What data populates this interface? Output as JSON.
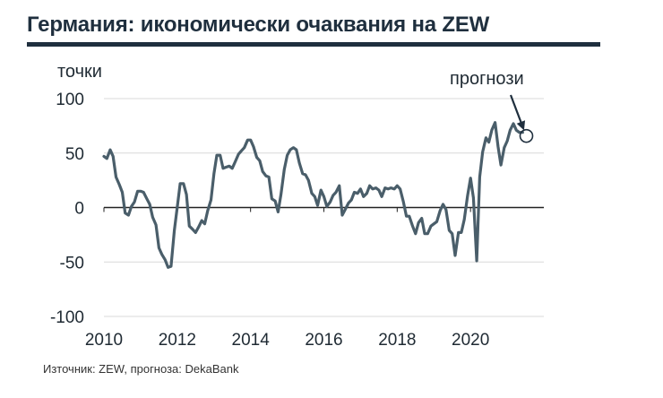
{
  "title": "Германия: икономически очаквания на ZEW",
  "source": "Източник: ZEW, прогноза: DekaBank",
  "colors": {
    "line": "#4a5e6a",
    "title": "#1f2f3e",
    "grid": "#d9d9d9"
  },
  "chart_data": {
    "type": "line",
    "ylabel": "точки",
    "ylim": [
      -100,
      100
    ],
    "yticks": [
      100,
      50,
      0,
      -50,
      -100
    ],
    "xlim": [
      2010,
      2022
    ],
    "xticks": [
      "2010",
      "2012",
      "2014",
      "2016",
      "2018",
      "2020"
    ],
    "grid": true,
    "annotation": {
      "text": "прогнози",
      "target": [
        2021.45,
        69
      ]
    },
    "series": [
      {
        "x": [
          2010.0,
          2010.08,
          2010.17,
          2010.25,
          2010.33,
          2010.42,
          2010.5,
          2010.58,
          2010.67,
          2010.75,
          2010.83,
          2010.92,
          2011.0,
          2011.08,
          2011.17,
          2011.25,
          2011.33,
          2011.42,
          2011.5,
          2011.58,
          2011.67,
          2011.75,
          2011.83,
          2011.92,
          2012.0,
          2012.08,
          2012.17,
          2012.25,
          2012.33,
          2012.42,
          2012.5,
          2012.58,
          2012.67,
          2012.75,
          2012.83,
          2012.92,
          2013.0,
          2013.08,
          2013.17,
          2013.25,
          2013.33,
          2013.42,
          2013.5,
          2013.58,
          2013.67,
          2013.75,
          2013.83,
          2013.92,
          2014.0,
          2014.08,
          2014.17,
          2014.25,
          2014.33,
          2014.42,
          2014.5,
          2014.58,
          2014.67,
          2014.75,
          2014.83,
          2014.92,
          2015.0,
          2015.08,
          2015.17,
          2015.25,
          2015.33,
          2015.42,
          2015.5,
          2015.58,
          2015.67,
          2015.75,
          2015.83,
          2015.92,
          2016.0,
          2016.08,
          2016.17,
          2016.25,
          2016.33,
          2016.42,
          2016.5,
          2016.58,
          2016.67,
          2016.75,
          2016.83,
          2016.92,
          2017.0,
          2017.08,
          2017.17,
          2017.25,
          2017.33,
          2017.42,
          2017.5,
          2017.58,
          2017.67,
          2017.75,
          2017.83,
          2017.92,
          2018.0,
          2018.08,
          2018.17,
          2018.25,
          2018.33,
          2018.42,
          2018.5,
          2018.58,
          2018.67,
          2018.75,
          2018.83,
          2018.92,
          2019.0,
          2019.08,
          2019.17,
          2019.25,
          2019.33,
          2019.42,
          2019.5,
          2019.58,
          2019.67,
          2019.75,
          2019.83,
          2019.92,
          2020.0,
          2020.08,
          2020.17,
          2020.25,
          2020.33,
          2020.42,
          2020.5,
          2020.58,
          2020.67,
          2020.75,
          2020.83,
          2020.92,
          2021.0,
          2021.08,
          2021.17,
          2021.25,
          2021.33,
          2021.42
        ],
        "values": [
          47,
          45,
          53,
          47,
          28,
          21,
          14,
          -5,
          -7,
          1,
          5,
          15,
          15,
          14,
          8,
          3,
          -9,
          -16,
          -37,
          -43,
          -48,
          -55,
          -54,
          -21,
          0,
          22,
          22,
          12,
          -17,
          -20,
          -23,
          -18,
          -12,
          -15,
          -3,
          7,
          31,
          48,
          48,
          36,
          37,
          38,
          36,
          42,
          49,
          52,
          55,
          62,
          62,
          56,
          46,
          43,
          33,
          29,
          28,
          8,
          6,
          -4,
          12,
          35,
          48,
          53,
          55,
          53,
          41,
          31,
          30,
          25,
          13,
          10,
          2,
          16,
          10,
          1,
          5,
          11,
          14,
          20,
          -7,
          -2,
          4,
          7,
          14,
          13,
          17,
          10,
          13,
          20,
          17,
          18,
          16,
          10,
          18,
          17,
          18,
          17,
          20,
          17,
          5,
          -8,
          -8,
          -17,
          -24,
          -14,
          -10,
          -24,
          -24,
          -17,
          -15,
          -13,
          -3,
          3,
          -2,
          -21,
          -24,
          -44,
          -23,
          -23,
          -11,
          11,
          27,
          9,
          -49,
          28,
          51,
          64,
          60,
          71,
          78,
          56,
          39,
          55,
          61,
          71,
          77,
          71,
          69,
          69
        ]
      }
    ]
  }
}
